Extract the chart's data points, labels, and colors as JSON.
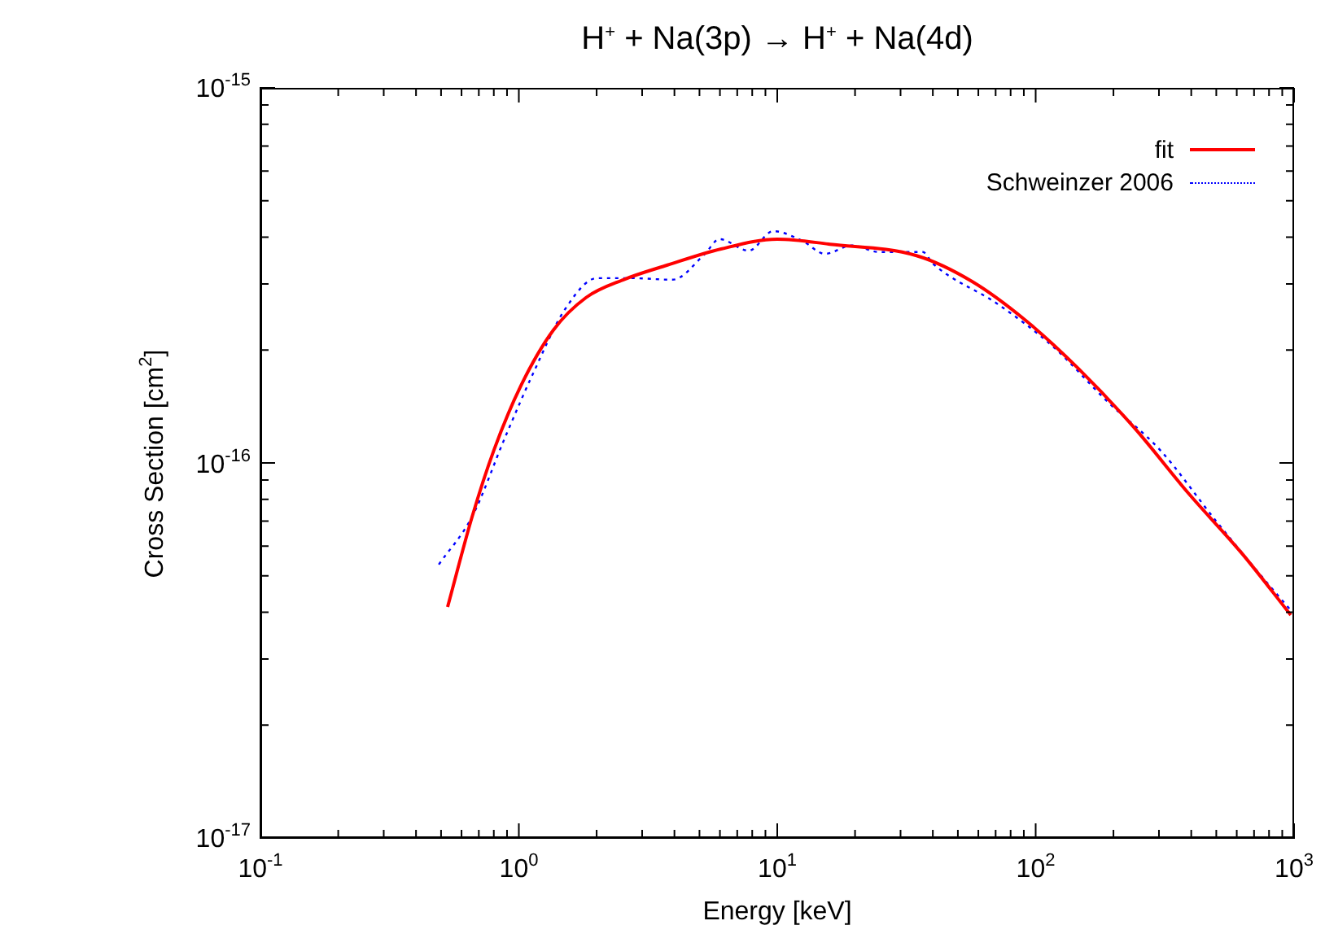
{
  "chart_data": {
    "type": "line",
    "title": "H$^{+}$ + Na(3p) → H$^{+}$ + Na(4d)",
    "xlabel": "Energy [keV]",
    "ylabel": "Cross Section [cm$^{2}$]",
    "log": "xy",
    "legend": "top right",
    "marker": "none",
    "xlim": [
      0.1,
      1000
    ],
    "ylim": [
      1e-17,
      1e-15
    ],
    "xticks": [
      {
        "value": 0.1,
        "label": "10$^{-1}$"
      },
      {
        "value": 0.2,
        "label": null
      },
      {
        "value": 0.3,
        "label": null
      },
      {
        "value": 0.4,
        "label": null
      },
      {
        "value": 0.5,
        "label": null
      },
      {
        "value": 0.6,
        "label": null
      },
      {
        "value": 0.7,
        "label": null
      },
      {
        "value": 0.8,
        "label": null
      },
      {
        "value": 0.9,
        "label": null
      },
      {
        "value": 1,
        "label": "10$^{0}$"
      },
      {
        "value": 2,
        "label": null
      },
      {
        "value": 3,
        "label": null
      },
      {
        "value": 4,
        "label": null
      },
      {
        "value": 5,
        "label": null
      },
      {
        "value": 6,
        "label": null
      },
      {
        "value": 7,
        "label": null
      },
      {
        "value": 8,
        "label": null
      },
      {
        "value": 9,
        "label": null
      },
      {
        "value": 10,
        "label": "10$^{1}$"
      },
      {
        "value": 20,
        "label": null
      },
      {
        "value": 30,
        "label": null
      },
      {
        "value": 40,
        "label": null
      },
      {
        "value": 50,
        "label": null
      },
      {
        "value": 60,
        "label": null
      },
      {
        "value": 70,
        "label": null
      },
      {
        "value": 80,
        "label": null
      },
      {
        "value": 90,
        "label": null
      },
      {
        "value": 100,
        "label": "10$^{2}$"
      },
      {
        "value": 200,
        "label": null
      },
      {
        "value": 300,
        "label": null
      },
      {
        "value": 400,
        "label": null
      },
      {
        "value": 500,
        "label": null
      },
      {
        "value": 600,
        "label": null
      },
      {
        "value": 700,
        "label": null
      },
      {
        "value": 800,
        "label": null
      },
      {
        "value": 900,
        "label": null
      },
      {
        "value": 1000,
        "label": "10$^{3}$"
      }
    ],
    "yticks": [
      {
        "value": 1e-17,
        "label": "10$^{-17}$"
      },
      {
        "value": 2e-17,
        "label": null
      },
      {
        "value": 3e-17,
        "label": null
      },
      {
        "value": 4e-17,
        "label": null
      },
      {
        "value": 5e-17,
        "label": null
      },
      {
        "value": 6e-17,
        "label": null
      },
      {
        "value": 7e-17,
        "label": null
      },
      {
        "value": 8e-17,
        "label": null
      },
      {
        "value": 9e-17,
        "label": null
      },
      {
        "value": 1e-16,
        "label": "10$^{-16}$"
      },
      {
        "value": 2e-16,
        "label": null
      },
      {
        "value": 3e-16,
        "label": null
      },
      {
        "value": 4e-16,
        "label": null
      },
      {
        "value": 5e-16,
        "label": null
      },
      {
        "value": 6e-16,
        "label": null
      },
      {
        "value": 7e-16,
        "label": null
      },
      {
        "value": 8e-16,
        "label": null
      },
      {
        "value": 9e-16,
        "label": null
      },
      {
        "value": 1e-15,
        "label": "10$^{-15}$"
      }
    ],
    "series": [
      {
        "name": "fit",
        "color": "#ff0000",
        "line_style": "solid",
        "x": [
          0.53,
          0.66,
          0.8,
          1.02,
          1.36,
          1.82,
          2.54,
          3.76,
          6.06,
          10,
          16,
          34.6,
          56.6,
          91.4,
          147,
          241,
          390,
          628,
          971
        ],
        "values": [
          4.13e-17,
          7.2e-17,
          1.08e-16,
          1.61e-16,
          2.26e-16,
          2.76e-16,
          3.08e-16,
          3.37e-16,
          3.72e-16,
          3.95e-16,
          3.83e-16,
          3.57e-16,
          3.05e-16,
          2.4e-16,
          1.78e-16,
          1.24e-16,
          8.3e-17,
          5.74e-17,
          3.93e-17
        ]
      },
      {
        "name": "Schweinzer 2006",
        "color": "#0000ff",
        "line_style": "dotted",
        "x": [
          0.49,
          0.66,
          0.88,
          1.13,
          1.51,
          2.01,
          2.69,
          3.93,
          5.25,
          5.97,
          7.76,
          9.64,
          12.5,
          15.3,
          19.4,
          24.8,
          36.6,
          40,
          71.4,
          117,
          189,
          304,
          499,
          805,
          971
        ],
        "values": [
          5.36e-17,
          7.2e-17,
          1.16e-16,
          1.72e-16,
          2.57e-16,
          3.11e-16,
          3.11e-16,
          3.08e-16,
          3.61e-16,
          3.95e-16,
          3.68e-16,
          4.15e-16,
          3.91e-16,
          3.61e-16,
          3.8e-16,
          3.65e-16,
          3.65e-16,
          3.4e-16,
          2.65e-16,
          2.04e-16,
          1.46e-16,
          1.08e-16,
          7e-17,
          4.7e-17,
          4.05e-17
        ]
      }
    ]
  }
}
